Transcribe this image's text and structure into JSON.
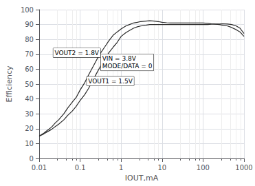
{
  "chart_data": {
    "type": "line",
    "log": "x",
    "grid": true,
    "xlabel": "IOUT,mA",
    "ylabel": "Efficiency",
    "xlim": [
      0.01,
      1000
    ],
    "ylim": [
      0,
      100
    ],
    "xticks": [
      0.01,
      0.1,
      1,
      10,
      100,
      1000
    ],
    "yticks": [
      0,
      10,
      20,
      30,
      40,
      50,
      60,
      70,
      80,
      90,
      100
    ],
    "x": [
      0.01,
      0.013,
      0.016,
      0.02,
      0.025,
      0.03,
      0.04,
      0.05,
      0.065,
      0.08,
      0.1,
      0.13,
      0.16,
      0.2,
      0.25,
      0.3,
      0.4,
      0.5,
      0.65,
      0.8,
      1.0,
      1.3,
      1.6,
      2.0,
      2.5,
      3.0,
      4.0,
      5.0,
      6.5,
      8.0,
      10,
      13,
      16,
      20,
      25,
      30,
      40,
      50,
      65,
      80,
      100,
      130,
      160,
      200,
      250,
      300,
      400,
      500,
      650,
      800,
      1000
    ],
    "series": [
      {
        "color": "#2a2a2a",
        "values": [
          15,
          17,
          19,
          21,
          24,
          26,
          30,
          34,
          38,
          41,
          46,
          51,
          56,
          61,
          66,
          70,
          75,
          79,
          83,
          85,
          87,
          89,
          90,
          91,
          91.5,
          92,
          92.3,
          92.5,
          92.3,
          92,
          91.5,
          91.2,
          91,
          91,
          91,
          91,
          91,
          91,
          91,
          91,
          91,
          90.8,
          90.5,
          90.2,
          90,
          89.5,
          89,
          88,
          86.5,
          85,
          82
        ]
      },
      {
        "color": "#2a2a2a",
        "values": [
          15,
          16.5,
          18,
          19.5,
          21.5,
          23,
          26,
          29,
          32,
          35,
          39,
          43,
          47,
          52,
          57,
          61,
          67,
          71,
          75,
          78,
          82,
          84.5,
          86,
          87.5,
          88.5,
          89,
          89.5,
          90,
          90,
          90,
          90,
          90,
          90,
          90,
          90,
          90,
          90,
          90,
          90,
          90,
          90,
          90,
          90.2,
          90.3,
          90.4,
          90.5,
          90.3,
          90,
          89,
          87.5,
          84
        ]
      }
    ],
    "annotations": [
      {
        "text": "VOUT2 = 1.8V",
        "x": 0.022,
        "y": 68
      },
      {
        "text": "VIN = 3.8V\nMODE/DATA = 0",
        "x": 0.32,
        "y": 59
      },
      {
        "text": "VOUT1 = 1.5V",
        "x": 0.145,
        "y": 49
      }
    ]
  }
}
